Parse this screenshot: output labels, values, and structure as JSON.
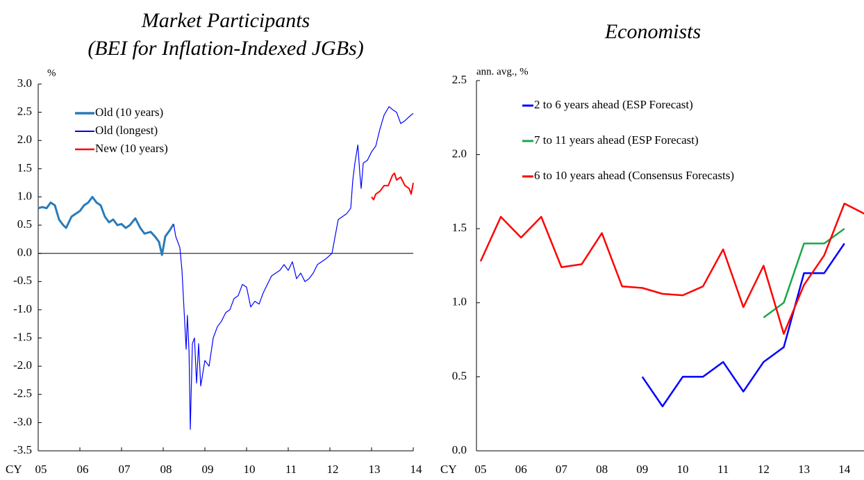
{
  "chart_data": [
    {
      "type": "line",
      "title": [
        "Market Participants",
        "(BEI for Inflation-Indexed JGBs)"
      ],
      "ylabel": "%",
      "xlabel": "CY",
      "xlim": [
        2005,
        2014
      ],
      "xticks": [
        {
          "value": 2005,
          "label": "05"
        },
        {
          "value": 2006,
          "label": "06"
        },
        {
          "value": 2007,
          "label": "07"
        },
        {
          "value": 2008,
          "label": "08"
        },
        {
          "value": 2009,
          "label": "09"
        },
        {
          "value": 2010,
          "label": "10"
        },
        {
          "value": 2011,
          "label": "11"
        },
        {
          "value": 2012,
          "label": "12"
        },
        {
          "value": 2013,
          "label": "13"
        },
        {
          "value": 2014,
          "label": "14"
        }
      ],
      "ylim": [
        -3.5,
        3.0
      ],
      "yticks": [
        {
          "value": 3,
          "label": "3.0"
        },
        2.5,
        {
          "value": 2,
          "label": "2.0"
        },
        1.5,
        {
          "value": 1,
          "label": "1.0"
        },
        0.5,
        {
          "value": 0,
          "label": "0.0"
        },
        -0.5,
        {
          "value": -1,
          "label": "-1.0"
        },
        -1.5,
        {
          "value": -2,
          "label": "-2.0"
        },
        -2.5,
        {
          "value": -3,
          "label": "-3.0"
        },
        {
          "value": -3.5,
          "label": "-3.5"
        }
      ],
      "legend": "upper left",
      "series": [
        {
          "name": "Old (10 years)",
          "color": "#2a7ab8",
          "x": [
            2005.0,
            2005.1,
            2005.2,
            2005.3,
            2005.4,
            2005.5,
            2005.6,
            2005.67,
            2005.8,
            2005.9,
            2006.0,
            2006.1,
            2006.2,
            2006.3,
            2006.4,
            2006.5,
            2006.6,
            2006.7,
            2006.8,
            2006.9,
            2007.0,
            2007.1,
            2007.2,
            2007.33,
            2007.45,
            2007.55,
            2007.7,
            2007.8,
            2007.9,
            2007.97,
            2008.05,
            2008.15,
            2008.25
          ],
          "values": [
            0.8,
            0.82,
            0.8,
            0.9,
            0.85,
            0.6,
            0.5,
            0.45,
            0.65,
            0.7,
            0.75,
            0.85,
            0.9,
            1.0,
            0.9,
            0.85,
            0.65,
            0.55,
            0.6,
            0.5,
            0.52,
            0.45,
            0.5,
            0.62,
            0.45,
            0.35,
            0.38,
            0.3,
            0.2,
            -0.03,
            0.3,
            0.4,
            0.52
          ]
        },
        {
          "name": "Old (longest)",
          "color": "#0000ff",
          "x": [
            2008.25,
            2008.3,
            2008.4,
            2008.45,
            2008.5,
            2008.55,
            2008.58,
            2008.62,
            2008.65,
            2008.7,
            2008.75,
            2008.8,
            2008.85,
            2008.9,
            2009.0,
            2009.1,
            2009.2,
            2009.3,
            2009.4,
            2009.5,
            2009.6,
            2009.7,
            2009.8,
            2009.9,
            2010.0,
            2010.1,
            2010.2,
            2010.3,
            2010.4,
            2010.5,
            2010.6,
            2010.7,
            2010.8,
            2010.9,
            2011.0,
            2011.1,
            2011.2,
            2011.3,
            2011.4,
            2011.5,
            2011.6,
            2011.7,
            2011.8,
            2011.9,
            2012.05,
            2012.2,
            2012.3,
            2012.4,
            2012.5,
            2012.55,
            2012.6,
            2012.67,
            2012.72,
            2012.75,
            2012.8,
            2012.9,
            2013.0,
            2013.1,
            2013.2,
            2013.3,
            2013.42,
            2013.5,
            2013.6,
            2013.7,
            2013.8,
            2013.9,
            2014.0
          ],
          "values": [
            0.52,
            0.3,
            0.1,
            -0.3,
            -1.0,
            -1.7,
            -1.1,
            -1.75,
            -3.12,
            -1.6,
            -1.5,
            -2.3,
            -1.6,
            -2.35,
            -1.9,
            -2.0,
            -1.5,
            -1.3,
            -1.2,
            -1.05,
            -1.0,
            -0.8,
            -0.75,
            -0.55,
            -0.6,
            -0.95,
            -0.85,
            -0.9,
            -0.7,
            -0.55,
            -0.4,
            -0.35,
            -0.3,
            -0.2,
            -0.3,
            -0.15,
            -0.45,
            -0.35,
            -0.5,
            -0.45,
            -0.35,
            -0.2,
            -0.15,
            -0.1,
            0.0,
            0.6,
            0.65,
            0.7,
            0.8,
            1.3,
            1.6,
            1.92,
            1.4,
            1.15,
            1.6,
            1.65,
            1.8,
            1.9,
            2.2,
            2.45,
            2.6,
            2.55,
            2.5,
            2.3,
            2.35,
            2.42,
            2.48
          ]
        },
        {
          "name": "New (10 years)",
          "color": "#ff0000",
          "x": [
            2013.0,
            2013.05,
            2013.1,
            2013.2,
            2013.3,
            2013.4,
            2013.5,
            2013.55,
            2013.6,
            2013.7,
            2013.8,
            2013.9,
            2013.95,
            2014.0
          ],
          "values": [
            1.0,
            0.95,
            1.05,
            1.1,
            1.2,
            1.2,
            1.38,
            1.42,
            1.3,
            1.35,
            1.2,
            1.15,
            1.05,
            1.25
          ]
        }
      ]
    },
    {
      "type": "line",
      "title": [
        "Economists"
      ],
      "ylabel": "ann. avg., %",
      "xlabel": "CY",
      "categories": [
        "05",
        null,
        "06",
        null,
        "07",
        null,
        "08",
        null,
        "09",
        null,
        "10",
        null,
        "11",
        null,
        "12",
        null,
        "13",
        null,
        "14",
        null
      ],
      "ylim": [
        0,
        2.5
      ],
      "yticks": [
        {
          "value": 0,
          "label": "0.0"
        },
        0.5,
        {
          "value": 1,
          "label": "1.0"
        },
        1.5,
        {
          "value": 2,
          "label": "2.0"
        },
        2.5
      ],
      "legend": "upper left",
      "series": [
        {
          "name": "2 to 6 years ahead (ESP Forecast)",
          "color": "#0000ff",
          "values": [
            null,
            null,
            null,
            null,
            null,
            null,
            null,
            null,
            0.5,
            0.3,
            0.5,
            0.5,
            0.6,
            0.4,
            0.6,
            0.7,
            1.2,
            1.2,
            1.4,
            null
          ]
        },
        {
          "name": "7 to 11 years ahead (ESP Forecast)",
          "color": "#1aa64a",
          "values": [
            null,
            null,
            null,
            null,
            null,
            null,
            null,
            null,
            null,
            null,
            null,
            null,
            null,
            null,
            0.9,
            1.0,
            1.4,
            1.4,
            1.5,
            null
          ]
        },
        {
          "name": "6 to 10 years ahead (Consensus Forecasts)",
          "color": "#ff0000",
          "values": [
            1.28,
            1.58,
            1.44,
            1.58,
            1.24,
            1.26,
            1.47,
            1.11,
            1.1,
            1.06,
            1.05,
            1.11,
            1.36,
            0.97,
            1.25,
            0.79,
            1.12,
            1.32,
            1.67,
            1.6
          ]
        }
      ]
    }
  ]
}
